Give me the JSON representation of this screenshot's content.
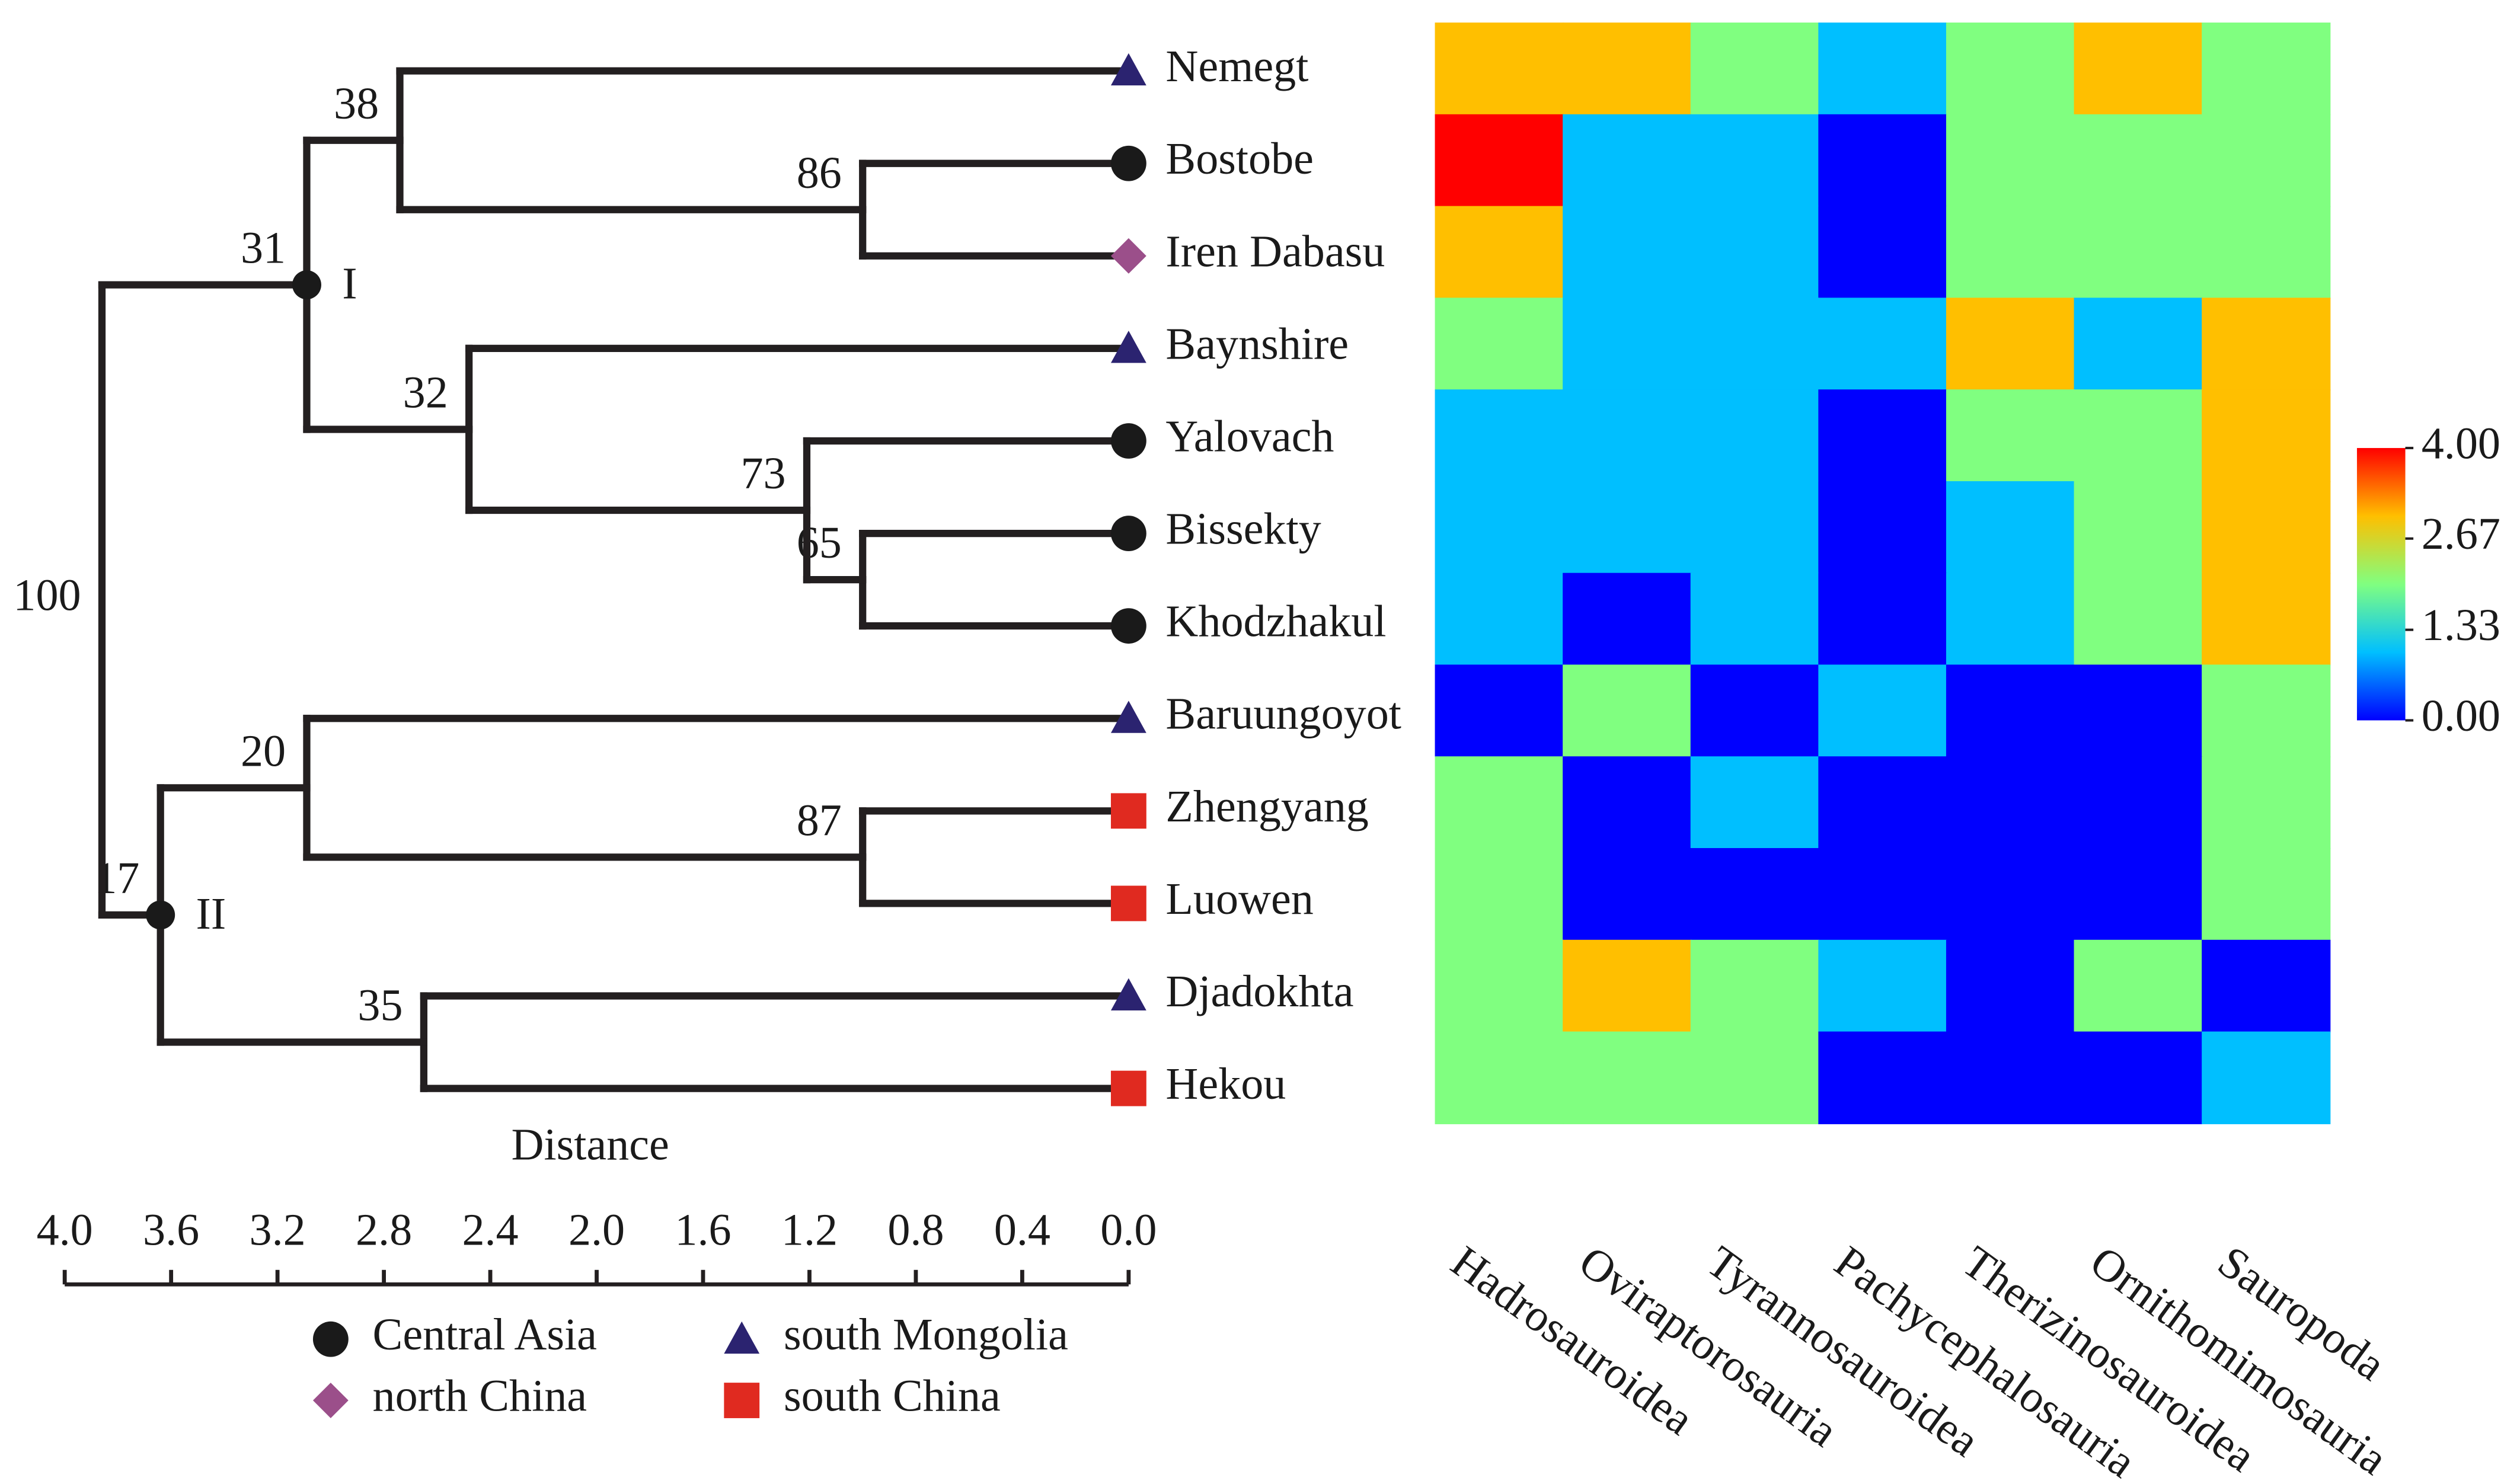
{
  "chart_data": [
    {
      "type": "dendrogram",
      "x_label": "Distance",
      "xlim": [
        4.0,
        0.0
      ],
      "xticks": [
        {
          "value": 4,
          "label": "4.0"
        },
        {
          "value": 3.6,
          "label": "3.6"
        },
        {
          "value": 3.2,
          "label": "3.2"
        },
        {
          "value": 2.8,
          "label": "2.8"
        },
        {
          "value": 2.4,
          "label": "2.4"
        },
        {
          "value": 2,
          "label": "2.0"
        },
        {
          "value": 1.6,
          "label": "1.6"
        },
        {
          "value": 1.2,
          "label": "1.2"
        },
        {
          "value": 0.8,
          "label": "0.8"
        },
        {
          "value": 0.4,
          "label": "0.4"
        },
        {
          "value": 0,
          "label": "0.0"
        }
      ],
      "regions": [
        {
          "name": "Central Asia",
          "shape": "circle",
          "color": "#1a1a1a",
          "text_color": "#1a1a1a"
        },
        {
          "name": "south Mongolia",
          "shape": "triangle",
          "color": "#2b2370",
          "text_color": "#1f1fd6"
        },
        {
          "name": "north China",
          "shape": "diamond",
          "color": "#9b4f8a",
          "text_color": "#9a2fb0"
        },
        {
          "name": "south China",
          "shape": "square",
          "color": "#e02a20",
          "text_color": "#e8231d"
        }
      ],
      "tree": {
        "height": 3.86,
        "support": 100,
        "children": [
          {
            "height": 3.09,
            "support": 31,
            "label": "I",
            "children": [
              {
                "height": 2.74,
                "support": 38,
                "children": [
                  {
                    "name": "Nemegt",
                    "region": 1
                  },
                  {
                    "height": 1.0,
                    "support": 86,
                    "children": [
                      {
                        "name": "Bostobe",
                        "region": 0
                      },
                      {
                        "name": "Iren Dabasu",
                        "region": 2
                      }
                    ]
                  }
                ]
              },
              {
                "height": 2.48,
                "support": 32,
                "children": [
                  {
                    "name": "Baynshire",
                    "region": 1
                  },
                  {
                    "height": 1.21,
                    "support": 73,
                    "children": [
                      {
                        "name": "Yalovach",
                        "region": 0
                      },
                      {
                        "height": 1.0,
                        "support": 65,
                        "children": [
                          {
                            "name": "Bissekty",
                            "region": 0
                          },
                          {
                            "name": "Khodzhakul",
                            "region": 0
                          }
                        ]
                      }
                    ]
                  }
                ]
              }
            ]
          },
          {
            "height": 3.64,
            "support": 17,
            "label": "II",
            "children": [
              {
                "height": 3.09,
                "support": 20,
                "children": [
                  {
                    "name": "Baruungoyot",
                    "region": 1
                  },
                  {
                    "height": 1.0,
                    "support": 87,
                    "children": [
                      {
                        "name": "Zhengyang",
                        "region": 3
                      },
                      {
                        "name": "Luowen",
                        "region": 3
                      }
                    ]
                  }
                ]
              },
              {
                "height": 2.65,
                "support": 35,
                "children": [
                  {
                    "name": "Djadokhta",
                    "region": 1
                  },
                  {
                    "name": "Hekou",
                    "region": 3
                  }
                ]
              }
            ]
          }
        ]
      }
    },
    {
      "type": "heatmap",
      "columns": [
        "Hadrosauroidea",
        "Oviraptorosauria",
        "Tyrannosauroidea",
        "Pachycephalosauria",
        "Therizinosauroidea",
        "Ornithomimosauria",
        "Sauropoda"
      ],
      "values": [
        [
          3,
          3,
          2,
          1,
          2,
          3,
          2
        ],
        [
          4,
          1,
          1,
          0,
          2,
          2,
          2
        ],
        [
          3,
          1,
          1,
          0,
          2,
          2,
          2
        ],
        [
          2,
          1,
          1,
          1,
          3,
          1,
          3
        ],
        [
          1,
          1,
          1,
          0,
          2,
          2,
          3
        ],
        [
          1,
          1,
          1,
          0,
          1,
          2,
          3
        ],
        [
          1,
          0,
          1,
          0,
          1,
          2,
          3
        ],
        [
          0,
          2,
          0,
          1,
          0,
          0,
          2
        ],
        [
          2,
          0,
          1,
          0,
          0,
          0,
          2
        ],
        [
          2,
          0,
          0,
          0,
          0,
          0,
          2
        ],
        [
          2,
          3,
          2,
          1,
          0,
          2,
          0
        ],
        [
          2,
          2,
          2,
          0,
          0,
          0,
          1
        ]
      ],
      "colormap": [
        "#0000ff",
        "#00bfff",
        "#80ff80",
        "#ffbf00",
        "#ff0000"
      ],
      "clim": [
        0,
        4
      ],
      "cticks": [
        {
          "value": 4,
          "label": "4.00"
        },
        {
          "value": 2.67,
          "label": "2.67"
        },
        {
          "value": 1.33,
          "label": "1.33"
        },
        {
          "value": 0,
          "label": "0.00"
        }
      ]
    }
  ]
}
